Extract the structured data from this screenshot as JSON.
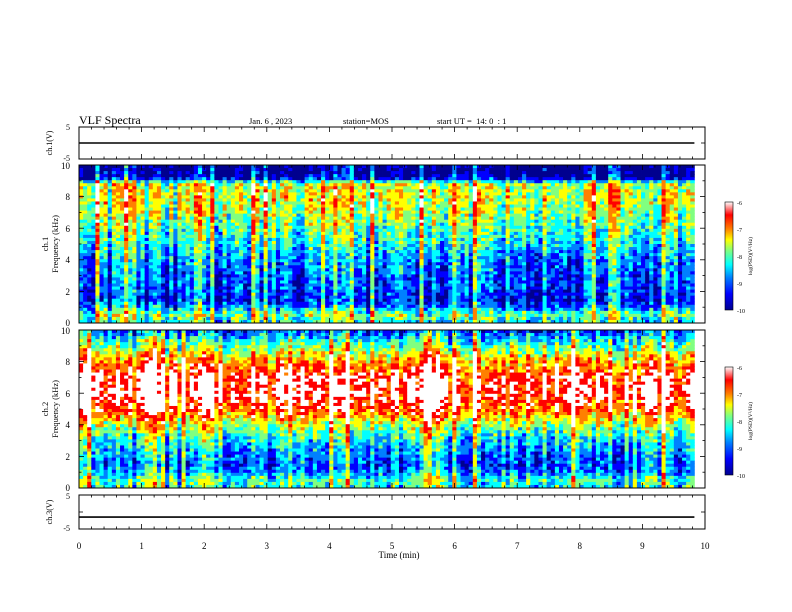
{
  "header": {
    "title": "VLF Spectra",
    "date": "Jan. 6 , 2023",
    "station": "station=MOS",
    "start_ut": "start UT =  14: 0  : 1"
  },
  "colors": {
    "jet": [
      "#00008f",
      "#0000ff",
      "#0080ff",
      "#00ffff",
      "#80ff80",
      "#ffff00",
      "#ff8000",
      "#ff0000",
      "#ffffff"
    ],
    "trace": "#000000"
  },
  "chart_data": [
    {
      "type": "line",
      "panel": "ch1-waveform",
      "ylabel": "ch.1(V)",
      "ylim": [
        -5,
        5
      ],
      "y_ticks": [
        "5",
        "-5"
      ],
      "x_range": [
        0,
        10
      ],
      "level": 0
    },
    {
      "type": "heatmap",
      "panel": "ch1-spectrogram",
      "ylabel_top": "ch.1",
      "ylabel": "Frequency (kHz)",
      "ylim": [
        0,
        10
      ],
      "y_ticks": [
        "0",
        "2",
        "4",
        "6",
        "8",
        "10"
      ],
      "xlim": [
        0,
        10
      ],
      "data_end_min": 9.83,
      "colorbar": {
        "label": "log(PSD)(V²/Hz)",
        "range": [
          -10,
          -6
        ],
        "ticks": [
          "-6",
          "-7",
          "-8",
          "-9",
          "-10"
        ]
      },
      "band_profile": {
        "freq_khz": [
          0,
          0.5,
          1,
          1.5,
          2,
          3,
          4,
          5,
          6,
          7,
          8,
          8.8,
          9.2,
          10
        ],
        "log_psd": [
          -8.6,
          -8.0,
          -8.9,
          -9.4,
          -9.2,
          -9.1,
          -8.9,
          -8.5,
          -8.2,
          -7.9,
          -7.7,
          -7.8,
          -9.8,
          -10.0
        ]
      }
    },
    {
      "type": "heatmap",
      "panel": "ch2-spectrogram",
      "ylabel_top": "ch.2",
      "ylabel": "Frequency (kHz)",
      "ylim": [
        0,
        10
      ],
      "y_ticks": [
        "0",
        "2",
        "4",
        "6",
        "8",
        "10"
      ],
      "xlim": [
        0,
        10
      ],
      "data_end_min": 9.83,
      "colorbar": {
        "label": "log(PSD)(V²/Hz)",
        "range": [
          -10,
          -6
        ],
        "ticks": [
          "-6",
          "-7",
          "-8",
          "-9",
          "-10"
        ]
      },
      "band_profile": {
        "freq_khz": [
          0,
          0.5,
          1,
          1.5,
          2,
          3,
          4,
          5,
          6,
          7,
          8,
          8.8,
          9.5,
          10
        ],
        "log_psd": [
          -8.4,
          -8.2,
          -8.9,
          -9.1,
          -8.9,
          -8.5,
          -7.8,
          -6.8,
          -6.4,
          -6.5,
          -7.2,
          -7.9,
          -8.6,
          -9.2
        ]
      }
    },
    {
      "type": "line",
      "panel": "ch3-waveform",
      "ylabel": "ch.3(V)",
      "ylim": [
        -5,
        5
      ],
      "y_ticks": [
        "5",
        "-5"
      ],
      "x_range": [
        0,
        10
      ],
      "level": -1.5
    }
  ],
  "x_axis": {
    "label": "Time (min)",
    "ticks": [
      "0",
      "1",
      "2",
      "3",
      "4",
      "5",
      "6",
      "7",
      "8",
      "9",
      "10"
    ]
  }
}
